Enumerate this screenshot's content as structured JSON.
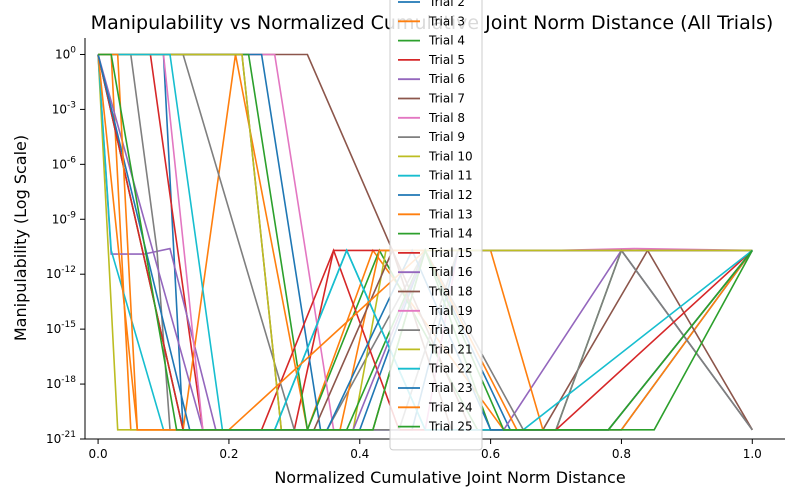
{
  "chart_data": {
    "type": "line",
    "title": "Manipulability vs Normalized Cumulative Joint Norm Distance (All Trials)",
    "xlabel": "Normalized Cumulative Joint Norm Distance",
    "ylabel": "Manipulability (Log Scale)",
    "xlim": [
      -0.02,
      1.05
    ],
    "ylim_log10": [
      -21,
      0.9
    ],
    "x_ticks": [
      0.0,
      0.2,
      0.4,
      0.6,
      0.8,
      1.0
    ],
    "x_tick_labels": [
      "0.0",
      "0.2",
      "0.4",
      "0.6",
      "0.8",
      "1.0"
    ],
    "y_ticks_log10": [
      0,
      -3,
      -6,
      -9,
      -12,
      -15,
      -18,
      -21
    ],
    "y_tick_labels": [
      "10^0",
      "10^-3",
      "10^-6",
      "10^-9",
      "10^-12",
      "10^-15",
      "10^-18",
      "10^-21"
    ],
    "y_scale": "log",
    "grid": false,
    "legend_position": "center-top",
    "series": [
      {
        "name": "Trial 2",
        "color": "#1f77b4",
        "log10_y": [
          0,
          0,
          -20.5,
          -20.5,
          -10.7,
          -20.5,
          -20.5,
          -10.7
        ],
        "x": [
          0,
          0.1,
          0.13,
          0.4,
          0.5,
          0.63,
          0.8,
          1.0
        ]
      },
      {
        "name": "Trial 3",
        "color": "#ff7f0e",
        "log10_y": [
          0,
          0,
          -20.5,
          -20.5,
          -10.7,
          -20.5,
          -20.5,
          -10.7
        ],
        "x": [
          0,
          0.02,
          0.05,
          0.32,
          0.42,
          0.62,
          0.8,
          1.0
        ]
      },
      {
        "name": "Trial 4",
        "color": "#2ca02c",
        "log10_y": [
          0,
          -20.5,
          -20.5,
          -10.7,
          -20.5,
          -20.5,
          -10.7,
          -20.5
        ],
        "x": [
          0,
          0.13,
          0.32,
          0.43,
          0.58,
          0.7,
          0.8,
          1.0
        ]
      },
      {
        "name": "Trial 5",
        "color": "#d62728",
        "log10_y": [
          0,
          0,
          -20.5,
          -20.5,
          -10.7,
          -10.7,
          -10.7
        ],
        "x": [
          0,
          0.08,
          0.16,
          0.3,
          0.36,
          0.5,
          1.0
        ]
      },
      {
        "name": "Trial 6",
        "color": "#9467bd",
        "log10_y": [
          0,
          -10.9,
          -10.9,
          -10.6,
          -20.5,
          -20.5,
          -10.7,
          -20.5
        ],
        "x": [
          0,
          0.02,
          0.07,
          0.11,
          0.18,
          0.62,
          0.8,
          1.0
        ]
      },
      {
        "name": "Trial 7",
        "color": "#8c564b",
        "log10_y": [
          0,
          0,
          -10.7,
          -20.5,
          -20.5,
          -10.7,
          -20.5
        ],
        "x": [
          0,
          0.32,
          0.45,
          0.57,
          0.68,
          0.84,
          1.0
        ]
      },
      {
        "name": "Trial 8",
        "color": "#e377c2",
        "log10_y": [
          0,
          0,
          -20.5,
          -20.5,
          -10.7,
          -10.7,
          -10.6,
          -10.7
        ],
        "x": [
          0,
          0.27,
          0.36,
          0.5,
          0.55,
          0.7,
          0.82,
          1.0
        ]
      },
      {
        "name": "Trial 9",
        "color": "#7f7f7f",
        "log10_y": [
          0,
          0,
          -10.7,
          -20.5,
          -20.5,
          -10.7,
          -20.5,
          -20.5,
          -10.7,
          -20.5
        ],
        "x": [
          0,
          0.05,
          0.09,
          0.11,
          0.35,
          0.5,
          0.65,
          0.7,
          0.8,
          1.0
        ]
      },
      {
        "name": "Trial 10",
        "color": "#bcbd22",
        "log10_y": [
          0,
          -20.5,
          -20.5,
          -10.7,
          -10.7,
          -10.7
        ],
        "x": [
          0,
          0.03,
          0.39,
          0.44,
          0.6,
          1.0
        ]
      },
      {
        "name": "Trial 11",
        "color": "#17becf",
        "log10_y": [
          0,
          -10.7,
          -20.5,
          -20.5,
          -10.7,
          -20.5,
          -20.5,
          -10.7
        ],
        "x": [
          0,
          0.02,
          0.1,
          0.27,
          0.38,
          0.5,
          0.78,
          1.0
        ]
      },
      {
        "name": "Trial 12",
        "color": "#1f77b4",
        "log10_y": [
          0,
          0,
          -20.5,
          -20.5,
          -10.7,
          -10.7
        ],
        "x": [
          0,
          0.25,
          0.34,
          0.48,
          0.55,
          1.0
        ]
      },
      {
        "name": "Trial 13",
        "color": "#ff7f0e",
        "log10_y": [
          0,
          -20.5,
          -20.5,
          0,
          -20.5,
          -20.5,
          -10.7,
          -10.7,
          -20.5,
          -20.5,
          -10.7
        ],
        "x": [
          0,
          0.06,
          0.13,
          0.21,
          0.32,
          0.37,
          0.43,
          0.6,
          0.68,
          0.78,
          1.0
        ]
      },
      {
        "name": "Trial 14",
        "color": "#2ca02c",
        "log10_y": [
          0,
          0,
          -20.5,
          -20.5,
          -10.7,
          -20.5,
          -20.5,
          -10.7
        ],
        "x": [
          0,
          0.23,
          0.32,
          0.38,
          0.5,
          0.6,
          0.85,
          1.0
        ]
      },
      {
        "name": "Trial 15",
        "color": "#d62728",
        "log10_y": [
          0,
          -20.5,
          -20.5,
          -10.7,
          -20.5,
          -20.5,
          -10.7
        ],
        "x": [
          0,
          0.13,
          0.25,
          0.36,
          0.46,
          0.7,
          1.0
        ]
      },
      {
        "name": "Trial 16",
        "color": "#9467bd",
        "log10_y": [
          0,
          -20.5,
          -20.5,
          -10.7,
          -10.7,
          -10.7
        ],
        "x": [
          0,
          0.16,
          0.39,
          0.5,
          0.8,
          1.0
        ]
      },
      {
        "name": "Trial 18",
        "color": "#8c564b",
        "log10_y": [
          0,
          0,
          -20.5,
          -20.5,
          -10.7,
          -20.5
        ],
        "x": [
          0,
          0.22,
          0.28,
          0.33,
          0.45,
          0.54
        ]
      },
      {
        "name": "Trial 19",
        "color": "#e377c2",
        "log10_y": [
          0,
          0,
          -20.5,
          -20.5,
          -10.7,
          -10.7,
          -10.7
        ],
        "x": [
          0,
          0.1,
          0.16,
          0.42,
          0.5,
          0.8,
          1.0
        ]
      },
      {
        "name": "Trial 20",
        "color": "#7f7f7f",
        "log10_y": [
          0,
          0,
          -20.5,
          -20.5,
          -10.7,
          -10.7,
          -10.7
        ],
        "x": [
          0,
          0.13,
          0.3,
          0.46,
          0.55,
          0.8,
          1.0
        ]
      },
      {
        "name": "Trial 21",
        "color": "#bcbd22",
        "log10_y": [
          0,
          0,
          -20.5,
          -20.5,
          -10.7,
          -10.7
        ],
        "x": [
          0,
          0.22,
          0.28,
          0.42,
          0.5,
          1.0
        ]
      },
      {
        "name": "Trial 22",
        "color": "#17becf",
        "log10_y": [
          0,
          0,
          -20.5,
          -20.5,
          -10.7,
          -20.5,
          -20.5,
          -10.7
        ],
        "x": [
          0,
          0.11,
          0.19,
          0.27,
          0.38,
          0.5,
          0.65,
          1.0
        ]
      },
      {
        "name": "Trial 23",
        "color": "#1f77b4",
        "log10_y": [
          0,
          -20.5,
          -20.5,
          -10.7,
          -20.5,
          -20.5,
          -10.7
        ],
        "x": [
          0,
          0.14,
          0.35,
          0.48,
          0.6,
          0.78,
          1.0
        ]
      },
      {
        "name": "Trial 24",
        "color": "#ff7f0e",
        "log10_y": [
          0,
          0,
          -20.5,
          -20.5,
          -10.7,
          -20.5
        ],
        "x": [
          0,
          0.03,
          0.06,
          0.2,
          0.5,
          0.64
        ]
      },
      {
        "name": "Trial 25",
        "color": "#2ca02c",
        "log10_y": [
          0,
          0,
          -20.5,
          -20.5,
          -10.7,
          -20.5,
          -20.5,
          -10.7
        ],
        "x": [
          0,
          0.02,
          0.12,
          0.42,
          0.5,
          0.62,
          0.78,
          1.0
        ]
      }
    ]
  }
}
